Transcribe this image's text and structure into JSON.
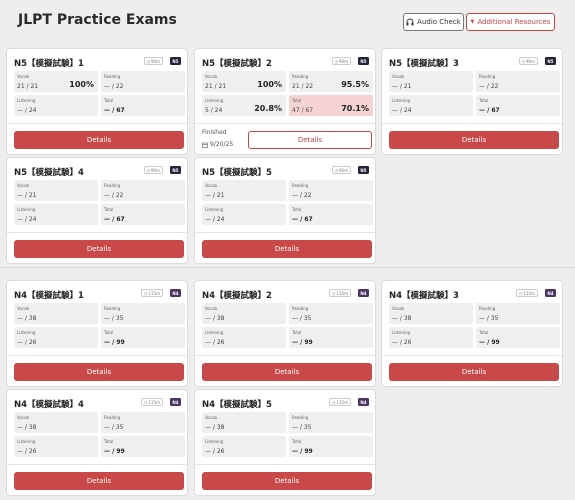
{
  "header": {
    "title": "JLPT Practice Exams",
    "audio_check": "Audio Check",
    "additional_resources": "Additional Resources"
  },
  "labels": {
    "vocab": "Vocab",
    "reading": "Reading",
    "listening": "Listening",
    "total": "Total",
    "details": "Details",
    "finished": "Finished"
  },
  "n5": [
    {
      "title": "N5【模擬試験】1",
      "time": "90m",
      "level": "N5",
      "vocab": "21 / 21",
      "vocab_pct": "100%",
      "reading": "— / 22",
      "listening": "— / 24",
      "total": "— / 67"
    },
    {
      "title": "N5【模擬試験】2",
      "time": "90m",
      "level": "N5",
      "vocab": "21 / 21",
      "vocab_pct": "100%",
      "reading": "21 / 22",
      "reading_pct": "95.5%",
      "listening": "5 / 24",
      "listening_pct": "20.8%",
      "total": "47 / 67",
      "total_pct": "70.1%",
      "finished_date": "9/20/25"
    },
    {
      "title": "N5【模擬試験】3",
      "time": "90m",
      "level": "N5",
      "vocab": "— / 21",
      "reading": "— / 22",
      "listening": "— / 24",
      "total": "— / 67"
    },
    {
      "title": "N5【模擬試験】4",
      "time": "90m",
      "level": "N5",
      "vocab": "— / 21",
      "reading": "— / 22",
      "listening": "— / 24",
      "total": "— / 67"
    },
    {
      "title": "N5【模擬試験】5",
      "time": "90m",
      "level": "N5",
      "vocab": "— / 21",
      "reading": "— / 22",
      "listening": "— / 24",
      "total": "— / 67"
    }
  ],
  "n4": [
    {
      "title": "N4【模擬試験】1",
      "time": "115m",
      "level": "N4",
      "vocab": "— / 38",
      "reading": "— / 35",
      "listening": "— / 26",
      "total": "— / 99"
    },
    {
      "title": "N4【模擬試験】2",
      "time": "115m",
      "level": "N4",
      "vocab": "— / 38",
      "reading": "— / 35",
      "listening": "— / 26",
      "total": "— / 99"
    },
    {
      "title": "N4【模擬試験】3",
      "time": "115m",
      "level": "N4",
      "vocab": "— / 38",
      "reading": "— / 35",
      "listening": "— / 26",
      "total": "— / 99"
    },
    {
      "title": "N4【模擬試験】4",
      "time": "115m",
      "level": "N4",
      "vocab": "— / 38",
      "reading": "— / 35",
      "listening": "— / 26",
      "total": "— / 99"
    },
    {
      "title": "N4【模擬試験】5",
      "time": "115m",
      "level": "N4",
      "vocab": "— / 38",
      "reading": "— / 35",
      "listening": "— / 26",
      "total": "— / 99"
    }
  ],
  "colors": {
    "accent": "#c94848",
    "highlight": "#f5d3d3",
    "n5_badge": "#23233a",
    "n4_badge": "#4a3563"
  },
  "icons": {
    "audio": "headphones-icon",
    "resources": "caret-down-icon",
    "time": "clock-icon",
    "date": "calendar-icon"
  }
}
